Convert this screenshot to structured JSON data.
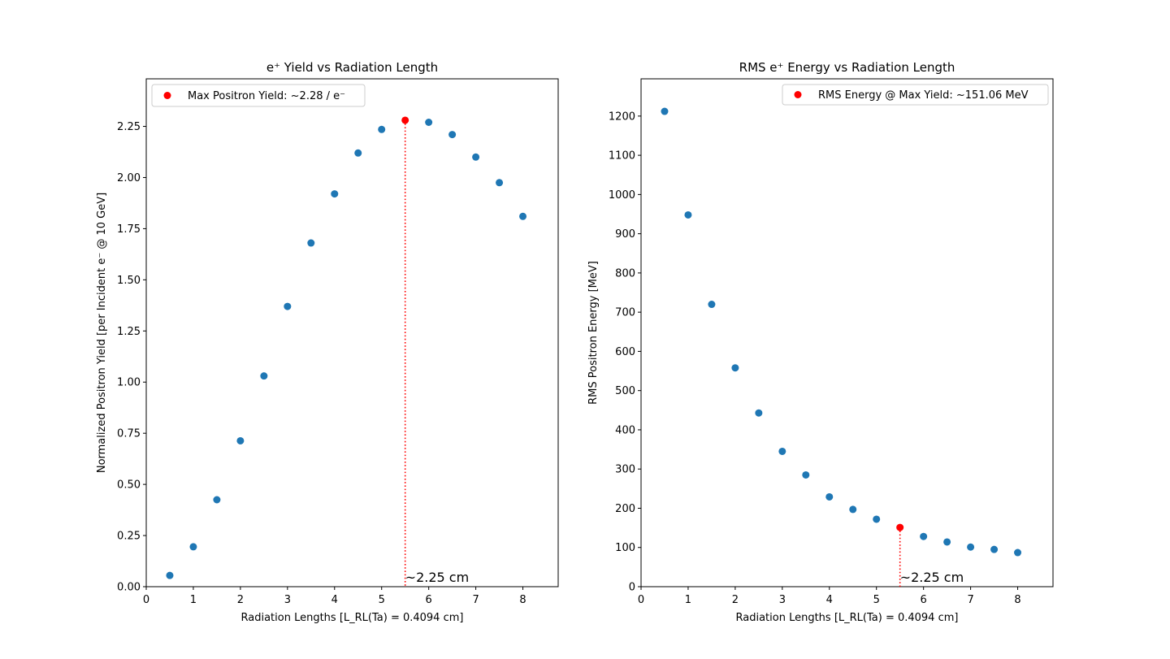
{
  "chart_data": [
    {
      "type": "scatter",
      "title": "e⁺ Yield vs Radiation Length",
      "xlabel": "Radiation Lengths [L_RL(Ta) = 0.4094 cm]",
      "ylabel": "Normalized Positron Yield [per Incident e⁻ @ 10 GeV]",
      "xlim": [
        0,
        8.75
      ],
      "ylim": [
        0,
        2.4825
      ],
      "xticks": [
        0,
        1,
        2,
        3,
        4,
        5,
        6,
        7,
        8
      ],
      "yticks": [
        "0.00",
        "0.25",
        "0.50",
        "0.75",
        "1.00",
        "1.25",
        "1.50",
        "1.75",
        "2.00",
        "2.25"
      ],
      "series_color": "#1f77b4",
      "highlight_color": "#ff0000",
      "x": [
        0.5,
        1,
        1.5,
        2,
        2.5,
        3,
        3.5,
        4,
        4.5,
        5,
        6,
        6.5,
        7,
        7.5,
        8
      ],
      "y": [
        0.055,
        0.195,
        0.425,
        0.713,
        1.03,
        1.37,
        1.68,
        1.92,
        2.12,
        2.235,
        2.27,
        2.21,
        2.1,
        1.975,
        1.81
      ],
      "highlight": {
        "x": 5.5,
        "y": 2.28
      },
      "legend": {
        "label": "Max Positron Yield: ~2.28 / e⁻",
        "loc": "upper left"
      },
      "annotation": "~2.25 cm",
      "grid": false
    },
    {
      "type": "scatter",
      "title": "RMS e⁺ Energy vs Radiation Length",
      "xlabel": "Radiation Lengths [L_RL(Ta) = 0.4094 cm]",
      "ylabel": "RMS Positron Energy [MeV]",
      "xlim": [
        0,
        8.75
      ],
      "ylim": [
        0,
        1295
      ],
      "xticks": [
        0,
        1,
        2,
        3,
        4,
        5,
        6,
        7,
        8
      ],
      "yticks": [
        "0",
        "100",
        "200",
        "300",
        "400",
        "500",
        "600",
        "700",
        "800",
        "900",
        "1000",
        "1100",
        "1200"
      ],
      "series_color": "#1f77b4",
      "highlight_color": "#ff0000",
      "x": [
        0.5,
        1,
        1.5,
        2,
        2.5,
        3,
        3.5,
        4,
        4.5,
        5,
        6,
        6.5,
        7,
        7.5,
        8
      ],
      "y": [
        1212,
        948,
        720,
        558,
        443,
        345,
        285,
        229,
        197,
        172,
        128,
        114,
        101,
        95,
        87
      ],
      "highlight": {
        "x": 5.5,
        "y": 151.06
      },
      "legend": {
        "label": "RMS Energy @ Max Yield: ~151.06 MeV",
        "loc": "upper right"
      },
      "annotation": "~2.25 cm",
      "grid": false
    }
  ]
}
